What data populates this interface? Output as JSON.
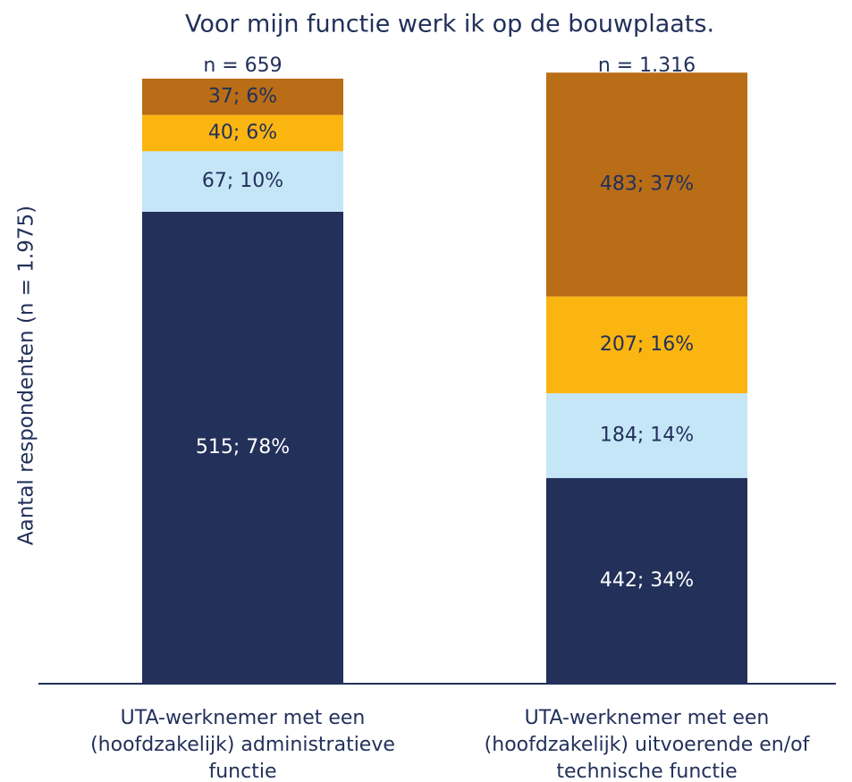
{
  "chart_data": {
    "type": "stacked_bar",
    "title": "Voor mijn functie werk ik op de bouwplaats.",
    "y_label": "Aantal respondenten (n = 1.975)",
    "categories": [
      "UTA-werknemer met een\n(hoofdzakelijk) administratieve\nfunctie",
      "UTA-werknemer met een\n(hoofdzakelijk) uitvoerende en/of\ntechnische functie"
    ],
    "bar_labels": [
      "n =  659",
      "n =  1.316"
    ],
    "ylim": [
      0,
      100
    ],
    "series": [
      {
        "color": "#22305a",
        "values": [
          78,
          34
        ],
        "value_labels": [
          "515; 78%",
          "442; 34%"
        ]
      },
      {
        "color": "#c5e6f7",
        "values": [
          10,
          14
        ],
        "value_labels": [
          "67; 10%",
          "184; 14%"
        ]
      },
      {
        "color": "#fbb511",
        "values": [
          6,
          16
        ],
        "value_labels": [
          "40; 6%",
          "207; 16%"
        ]
      },
      {
        "color": "#b96d17",
        "values": [
          6,
          37
        ],
        "value_labels": [
          "37; 6%",
          "483; 37%"
        ]
      }
    ]
  }
}
